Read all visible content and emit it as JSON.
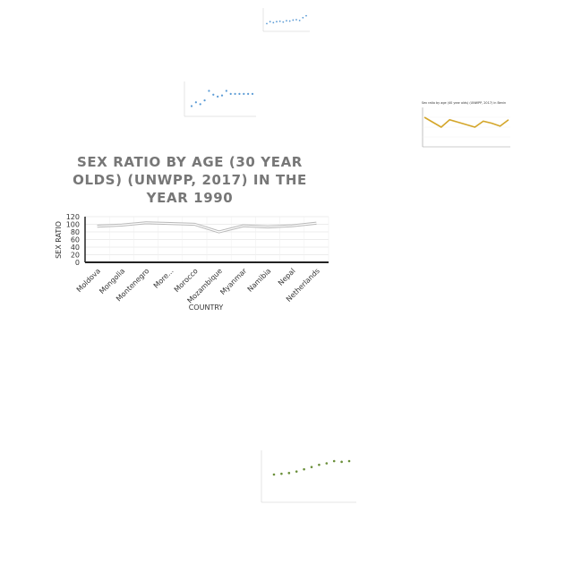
{
  "main_chart": {
    "chart_data": {
      "type": "line",
      "title": "SEX RATIO BY AGE (30 YEAR OLDS) (UNWPP, 2017) IN THE YEAR 1990",
      "title_lines": [
        "SEX RATIO BY AGE (30 YEAR",
        "OLDS) (UNWPP, 2017) IN THE",
        "YEAR 1990"
      ],
      "xlabel": "COUNTRY",
      "ylabel": "SEX RATIO",
      "categories": [
        "Moldova",
        "Mongolia",
        "Montenegro",
        "More...",
        "Morocco",
        "Mozambique",
        "Myanmar",
        "Namibia",
        "Nepal",
        "Netherlands"
      ],
      "values": [
        95,
        98,
        104,
        102,
        100,
        80,
        96,
        93,
        96,
        103
      ],
      "yticks": [
        0,
        20,
        40,
        60,
        80,
        100,
        120
      ],
      "ylim": [
        0,
        120
      ],
      "grid": true,
      "line_color": "#b8b8b8"
    }
  },
  "thumb_top": {
    "chart_data": {
      "type": "scatter",
      "x": [
        1,
        2,
        3,
        4,
        5,
        6,
        7,
        8,
        9,
        10,
        11,
        12,
        13
      ],
      "y": [
        3,
        4,
        3.5,
        4,
        4.2,
        3.8,
        4.5,
        4.3,
        4.8,
        5,
        4.6,
        6,
        7
      ],
      "ylim": [
        0,
        10
      ],
      "color": "#5b9bd5"
    }
  },
  "thumb_mid": {
    "chart_data": {
      "type": "scatter",
      "x": [
        1,
        2,
        3,
        4,
        5,
        6,
        7,
        8,
        9,
        10,
        11,
        12,
        13,
        14,
        15
      ],
      "y": [
        2,
        3,
        2.5,
        3.5,
        6,
        5,
        4.5,
        4.8,
        6,
        5.2,
        5.2,
        5.2,
        5.2,
        5.2,
        5.2
      ],
      "ylim": [
        0,
        8
      ],
      "color": "#5b9bd5"
    }
  },
  "thumb_right": {
    "chart_data": {
      "type": "line",
      "title": "Sex ratio by age (40 year olds) (UNWPP, 2017) in Benin",
      "values": [
        6,
        5,
        4,
        5.5,
        5,
        4.5,
        4,
        5.2,
        4.8,
        4.2,
        5.5
      ],
      "ylim": [
        0,
        8
      ],
      "color": "#d4a62a"
    }
  },
  "thumb_bottom": {
    "chart_data": {
      "type": "scatter",
      "x": [
        1,
        2,
        3,
        4,
        5,
        6,
        7,
        8,
        9,
        10,
        11
      ],
      "y": [
        3,
        3.1,
        3.2,
        3.4,
        3.7,
        4.0,
        4.3,
        4.5,
        4.8,
        4.7,
        4.8
      ],
      "ylim": [
        0,
        6
      ],
      "color": "#6a8f3a"
    }
  }
}
